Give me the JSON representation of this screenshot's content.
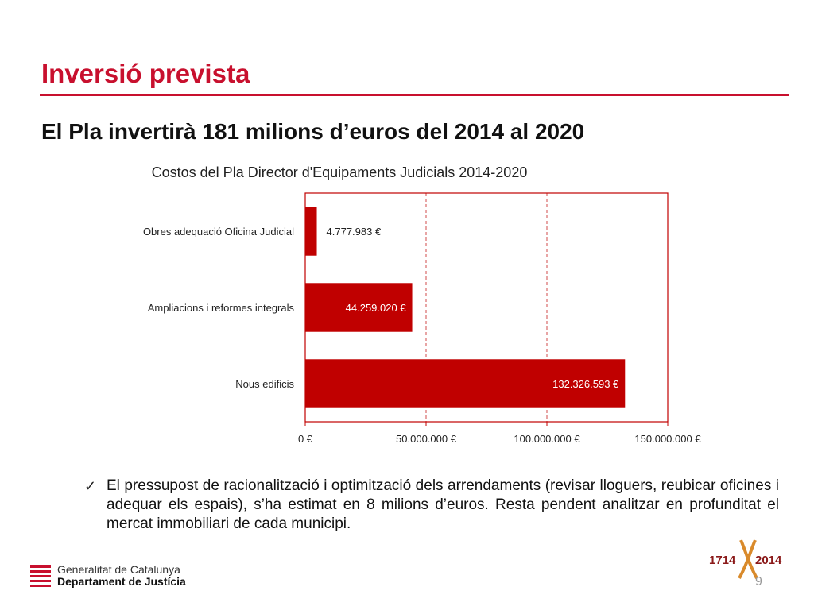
{
  "slide": {
    "title": "Inversió prevista",
    "subtitle": "El Pla invertirà 181 milions d’euros del 2014 al 2020",
    "bullet_text": "El pressupost de racionalització i optimització dels arrendaments (revisar lloguers, reubicar oficines i adequar els espais), s’ha estimat en 8 milions d’euros. Resta pendent analitzar en profunditat el mercat immobiliari de cada municipi.",
    "page_number": "9"
  },
  "footer": {
    "org_line1": "Generalitat de Catalunya",
    "org_line2": "Departament de Justícia",
    "anniv_left": "1714",
    "anniv_right": "2014"
  },
  "colors": {
    "accent": "#c8102e",
    "bar": "#c00000"
  },
  "chart_data": {
    "type": "bar",
    "orientation": "horizontal",
    "title": "Costos del Pla Director d'Equipaments Judicials 2014-2020",
    "categories": [
      "Obres adequació Oficina Judicial",
      "Ampliacions i reformes integrals",
      "Nous edificis"
    ],
    "values": [
      4777983,
      44259020,
      132326593
    ],
    "value_labels": [
      "4.777.983  €",
      "44.259.020  €",
      "132.326.593  €"
    ],
    "xlim": [
      0,
      150000000
    ],
    "xticks": [
      0,
      50000000,
      100000000,
      150000000
    ],
    "xtick_labels": [
      "0 €",
      "50.000.000  €",
      "100.000.000  €",
      "150.000.000  €"
    ],
    "grid": true,
    "legend": "none"
  }
}
